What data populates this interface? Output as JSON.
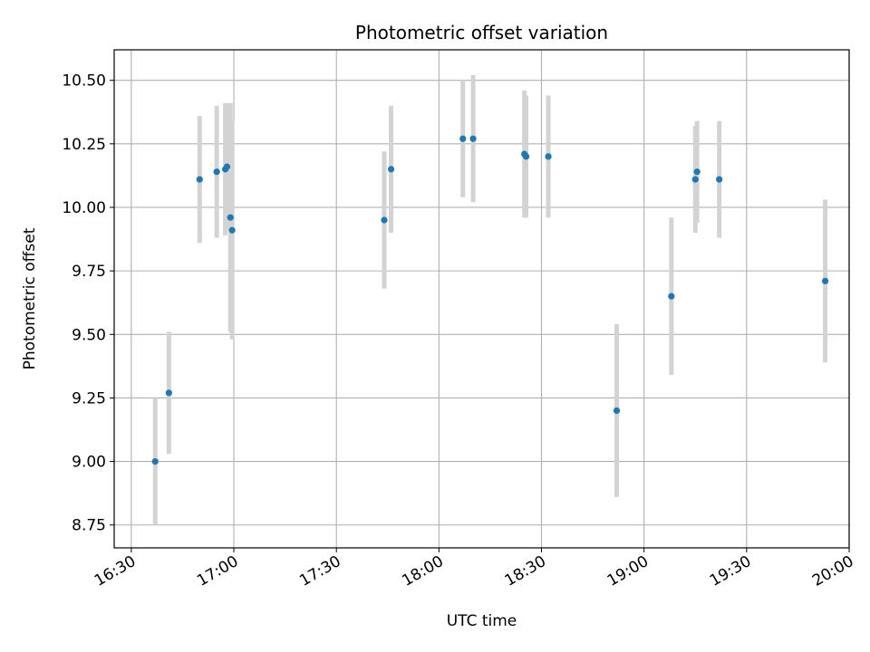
{
  "chart_data": {
    "type": "scatter",
    "title": "Photometric offset variation",
    "xlabel": "UTC time",
    "ylabel": "Photometric offset",
    "x_unit": "time (HH:MM, UTC)",
    "xlim": [
      "16:25",
      "20:00"
    ],
    "ylim": [
      8.66,
      10.62
    ],
    "x_ticks": [
      "16:30",
      "17:00",
      "17:30",
      "18:00",
      "18:30",
      "19:00",
      "19:30",
      "20:00"
    ],
    "y_ticks": [
      "8.75",
      "9.00",
      "9.25",
      "9.50",
      "9.75",
      "10.00",
      "10.25",
      "10.50"
    ],
    "grid": true,
    "marker_color": "#1f77b4",
    "errorbar_color": "#d3d3d3",
    "series": [
      {
        "points": [
          {
            "x": "16:37",
            "y": 9.0,
            "yerr": 0.25
          },
          {
            "x": "16:41",
            "y": 9.27,
            "yerr": 0.24
          },
          {
            "x": "16:50",
            "y": 10.11,
            "yerr": 0.25
          },
          {
            "x": "16:55",
            "y": 10.14,
            "yerr": 0.26
          },
          {
            "x": "16:57.5",
            "y": 10.15,
            "yerr": 0.26
          },
          {
            "x": "16:58",
            "y": 10.16,
            "yerr": 0.25
          },
          {
            "x": "16:59",
            "y": 9.96,
            "yerr": 0.45
          },
          {
            "x": "16:59.5",
            "y": 9.91,
            "yerr": 0.43
          },
          {
            "x": "17:44",
            "y": 9.95,
            "yerr": 0.27
          },
          {
            "x": "17:46",
            "y": 10.15,
            "yerr": 0.25
          },
          {
            "x": "18:07",
            "y": 10.27,
            "yerr": 0.23
          },
          {
            "x": "18:10",
            "y": 10.27,
            "yerr": 0.25
          },
          {
            "x": "18:25",
            "y": 10.21,
            "yerr": 0.25
          },
          {
            "x": "18:25.5",
            "y": 10.2,
            "yerr": 0.24
          },
          {
            "x": "18:32",
            "y": 10.2,
            "yerr": 0.24
          },
          {
            "x": "18:52",
            "y": 9.2,
            "yerr": 0.34
          },
          {
            "x": "19:08",
            "y": 9.65,
            "yerr": 0.31
          },
          {
            "x": "19:15",
            "y": 10.11,
            "yerr": 0.21
          },
          {
            "x": "19:15.5",
            "y": 10.14,
            "yerr": 0.2
          },
          {
            "x": "19:22",
            "y": 10.11,
            "yerr": 0.23
          },
          {
            "x": "19:53",
            "y": 9.71,
            "yerr": 0.32
          }
        ]
      }
    ]
  }
}
